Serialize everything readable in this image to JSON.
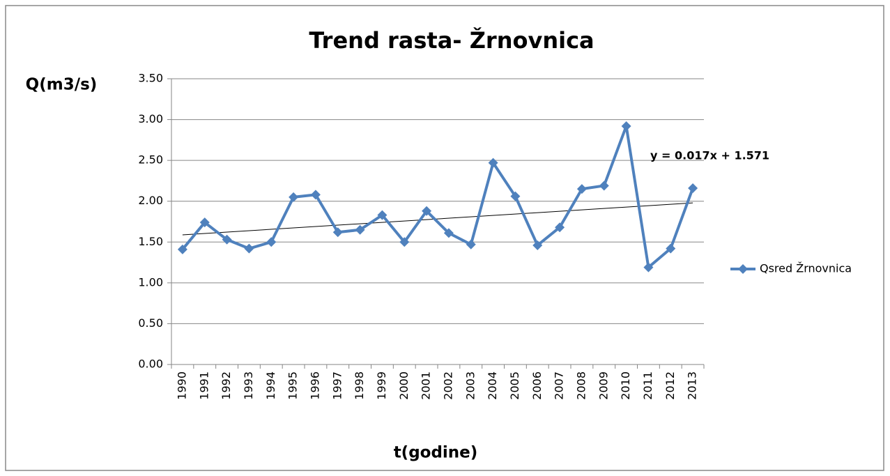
{
  "chart_data": {
    "type": "line",
    "title": "Trend rasta- Žrnovnica",
    "y_label": "Q(m3/s)",
    "x_label": "t(godine)",
    "categories": [
      "1990",
      "1991",
      "1992",
      "1993",
      "1994",
      "1995",
      "1996",
      "1997",
      "1998",
      "1999",
      "2000",
      "2001",
      "2002",
      "2003",
      "2004",
      "2005",
      "2006",
      "2007",
      "2008",
      "2009",
      "2010",
      "2011",
      "2012",
      "2013"
    ],
    "series": [
      {
        "name": "Qsred Žrnovnica",
        "color": "#4f81bd",
        "values": [
          1.41,
          1.74,
          1.53,
          1.42,
          1.5,
          2.05,
          2.08,
          1.62,
          1.65,
          1.83,
          1.5,
          1.88,
          1.61,
          1.47,
          2.47,
          2.06,
          1.46,
          1.68,
          2.15,
          2.19,
          2.92,
          1.19,
          1.42,
          2.16
        ]
      }
    ],
    "trendline": {
      "slope": 0.017,
      "intercept": 1.571,
      "label": "y = 0.017x + 1.571"
    },
    "ylim": [
      0,
      3.5
    ],
    "yticks": [
      {
        "value": 0,
        "label": "0.00"
      },
      {
        "value": 0.5,
        "label": "0.50"
      },
      {
        "value": 1,
        "label": "1.00"
      },
      {
        "value": 1.5,
        "label": "1.50"
      },
      {
        "value": 2,
        "label": "2.00"
      },
      {
        "value": 2.5,
        "label": "2.50"
      },
      {
        "value": 3,
        "label": "3.00"
      },
      {
        "value": 3.5,
        "label": "3.50"
      }
    ],
    "grid": true,
    "legend": "right"
  }
}
